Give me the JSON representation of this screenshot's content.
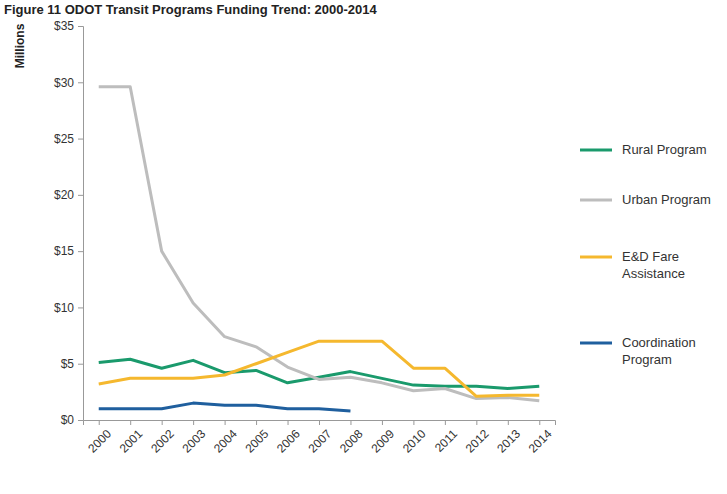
{
  "chart_data": {
    "type": "line",
    "title": "Figure 11 ODOT Transit Programs Funding Trend: 2000-2014",
    "y_label": "Millions",
    "categories": [
      "2000",
      "2001",
      "2002",
      "2003",
      "2004",
      "2005",
      "2006",
      "2007",
      "2008",
      "2009",
      "2010",
      "2011",
      "2012",
      "2013",
      "2014"
    ],
    "series": [
      {
        "name": "Rural Program",
        "color": "#1a9a6c",
        "values": [
          5.1,
          5.4,
          4.6,
          5.3,
          4.2,
          4.4,
          3.3,
          3.8,
          4.3,
          3.7,
          3.1,
          3.0,
          3.0,
          2.8,
          3.0
        ]
      },
      {
        "name": "Urban Program",
        "color": "#bdbdbd",
        "values": [
          29.6,
          29.6,
          15.0,
          10.4,
          7.4,
          6.5,
          4.7,
          3.6,
          3.8,
          3.3,
          2.6,
          2.8,
          1.9,
          2.0,
          1.7
        ]
      },
      {
        "name": "E&D Fare Assistance",
        "color": "#f5b82e",
        "values": [
          3.2,
          3.7,
          3.7,
          3.7,
          4.0,
          5.0,
          6.0,
          7.0,
          7.0,
          7.0,
          4.6,
          4.6,
          2.1,
          2.2,
          2.2
        ]
      },
      {
        "name": "Coordination Program",
        "color": "#1f5f9e",
        "values": [
          1.0,
          1.0,
          1.0,
          1.5,
          1.3,
          1.3,
          1.0,
          1.0,
          0.8,
          null,
          null,
          null,
          null,
          null,
          null
        ]
      }
    ],
    "ylim": [
      0,
      35
    ],
    "yticks": [
      {
        "value": 0,
        "label": "$0"
      },
      {
        "value": 5,
        "label": "$5"
      },
      {
        "value": 10,
        "label": "$10"
      },
      {
        "value": 15,
        "label": "$15"
      },
      {
        "value": 20,
        "label": "$20"
      },
      {
        "value": 25,
        "label": "$25"
      },
      {
        "value": 30,
        "label": "$30"
      },
      {
        "value": 35,
        "label": "$35"
      }
    ],
    "grid": false,
    "legend": "right"
  }
}
